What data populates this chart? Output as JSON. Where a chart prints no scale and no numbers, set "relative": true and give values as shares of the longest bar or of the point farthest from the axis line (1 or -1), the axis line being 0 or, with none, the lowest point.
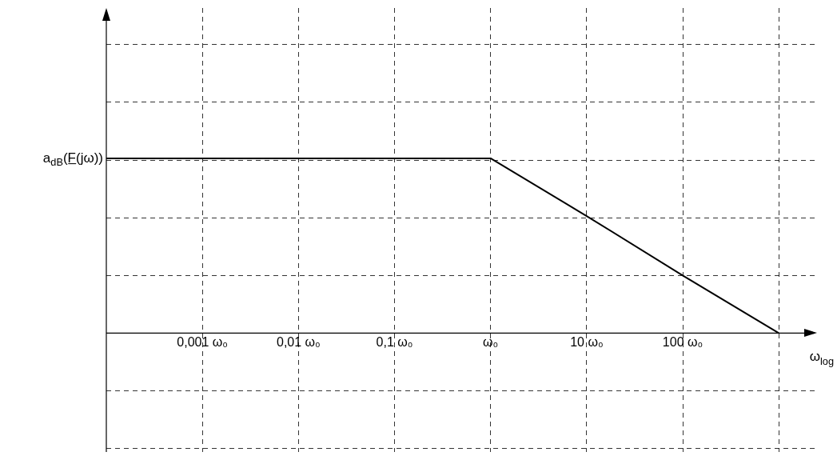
{
  "chart_data": {
    "type": "line",
    "relative": true,
    "log": "x",
    "x": [
      0.0001,
      1,
      10,
      100,
      1000
    ],
    "series": [
      {
        "color": "#000000",
        "values": [
          1,
          1,
          0.67,
          0.33,
          0
        ]
      }
    ],
    "xlim": [
      0.0001,
      2500
    ],
    "xticks": [
      {
        "value": 0.001,
        "label": "0,001 ω₀"
      },
      {
        "value": 0.01,
        "label": "0,01 ω₀"
      },
      {
        "value": 0.1,
        "label": "0,1 ω₀"
      },
      {
        "value": 1,
        "label": "ω₀"
      },
      {
        "value": 10,
        "label": "10 ω₀"
      },
      {
        "value": 100,
        "label": "100 ω₀"
      },
      {
        "value": 1000,
        "label": null
      }
    ],
    "xlabel": "ω$_{log}$",
    "ylabel": "a$_{dB}$(F̲(jω))",
    "grid": true,
    "legend": false,
    "marker": "none",
    "line_style": "solid"
  }
}
